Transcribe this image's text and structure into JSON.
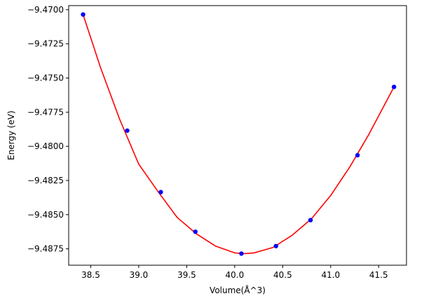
{
  "chart_data": {
    "type": "line",
    "title": "",
    "xlabel": "Volume(Å^3)",
    "ylabel": "Energy (eV)",
    "xlim": [
      38.27,
      41.79
    ],
    "ylim": [
      -9.4887,
      -9.4697
    ],
    "grid": false,
    "legend": "none",
    "x_ticks": [
      38.5,
      39.0,
      39.5,
      40.0,
      40.5,
      41.0,
      41.5
    ],
    "x_tick_labels": [
      "38.5",
      "39.0",
      "39.5",
      "40.0",
      "40.5",
      "41.0",
      "41.5"
    ],
    "y_ticks": [
      -9.4875,
      -9.485,
      -9.4825,
      -9.48,
      -9.4775,
      -9.475,
      -9.4725,
      -9.47
    ],
    "y_tick_labels": [
      "−9.4875",
      "−9.4850",
      "−9.4825",
      "−9.4800",
      "−9.4775",
      "−9.4750",
      "−9.4725",
      "−9.4700"
    ],
    "series": [
      {
        "kind": "scatter",
        "color": "#0000ff",
        "x": [
          38.42,
          38.88,
          39.23,
          39.59,
          40.07,
          40.43,
          40.79,
          41.28,
          41.66
        ],
        "y": [
          -9.47035,
          -9.47885,
          -9.48335,
          -9.48625,
          -9.48785,
          -9.4873,
          -9.4854,
          -9.48065,
          -9.47565
        ]
      },
      {
        "kind": "line",
        "color": "#ff0000",
        "x": [
          38.42,
          38.6,
          38.8,
          39.0,
          39.2,
          39.4,
          39.6,
          39.8,
          40.0,
          40.1,
          40.2,
          40.4,
          40.6,
          40.8,
          41.0,
          41.2,
          41.4,
          41.66
        ],
        "y": [
          -9.47035,
          -9.4742,
          -9.478,
          -9.4813,
          -9.4833,
          -9.4852,
          -9.4864,
          -9.4873,
          -9.4878,
          -9.48785,
          -9.4878,
          -9.4874,
          -9.4865,
          -9.4853,
          -9.4836,
          -9.4815,
          -9.4791,
          -9.47565
        ]
      }
    ]
  }
}
